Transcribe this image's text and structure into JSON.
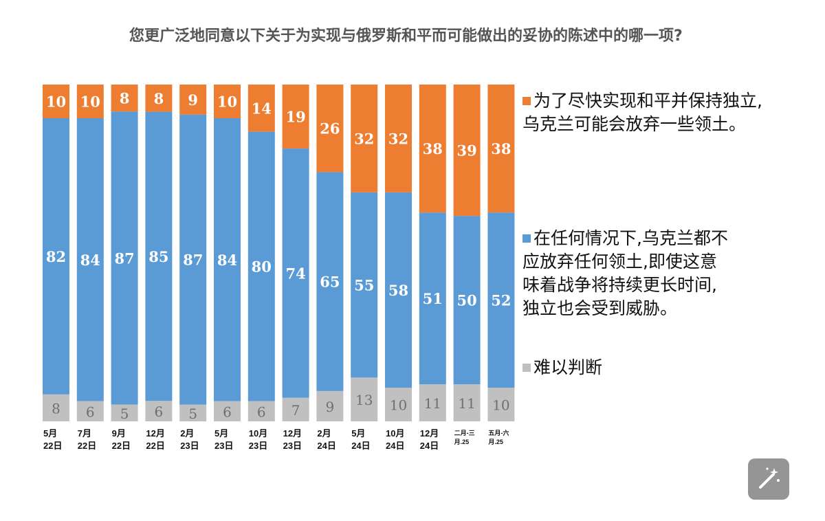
{
  "title": "您更广泛地同意以下关于为实现与俄罗斯和平而可能做出的妥协的陈述中的哪一项?",
  "colors": {
    "orange": "#ED7D31",
    "blue": "#5B9BD5",
    "gray": "#C0C0C0"
  },
  "legend": {
    "orange": [
      "为了尽快实现和平并保持独立,",
      "乌克兰可能会放弃一些领土。"
    ],
    "blue": [
      "在任何情况下,乌克兰都不",
      "应放弃任何领土,即使这意",
      "味着战争将持续更长时间,",
      "独立也会受到威胁。"
    ],
    "gray": [
      "难以判断"
    ]
  },
  "chart_data": {
    "type": "bar",
    "stacked": true,
    "categories": [
      [
        "5月",
        "22日"
      ],
      [
        "7月",
        "22日"
      ],
      [
        "9月",
        "22日"
      ],
      [
        "12月",
        "22日"
      ],
      [
        "2月",
        "23日"
      ],
      [
        "5月",
        "23日"
      ],
      [
        "10月",
        "23日"
      ],
      [
        "12月",
        "23日"
      ],
      [
        "2月",
        "24日"
      ],
      [
        "5月",
        "24日"
      ],
      [
        "10月",
        "24日"
      ],
      [
        "12月",
        "24日"
      ],
      [
        "二月-三",
        "月.25"
      ],
      [
        "五月-六",
        "月.25"
      ]
    ],
    "series": [
      {
        "key": "gray",
        "values": [
          8,
          6,
          5,
          6,
          5,
          6,
          6,
          7,
          9,
          13,
          10,
          11,
          11,
          10
        ]
      },
      {
        "key": "blue",
        "values": [
          82,
          84,
          87,
          85,
          87,
          84,
          80,
          74,
          65,
          55,
          58,
          51,
          50,
          52
        ]
      },
      {
        "key": "orange",
        "values": [
          10,
          10,
          8,
          8,
          9,
          10,
          14,
          19,
          26,
          32,
          32,
          38,
          39,
          38
        ]
      }
    ]
  },
  "icons": {
    "magic": "magic-wand-icon"
  }
}
